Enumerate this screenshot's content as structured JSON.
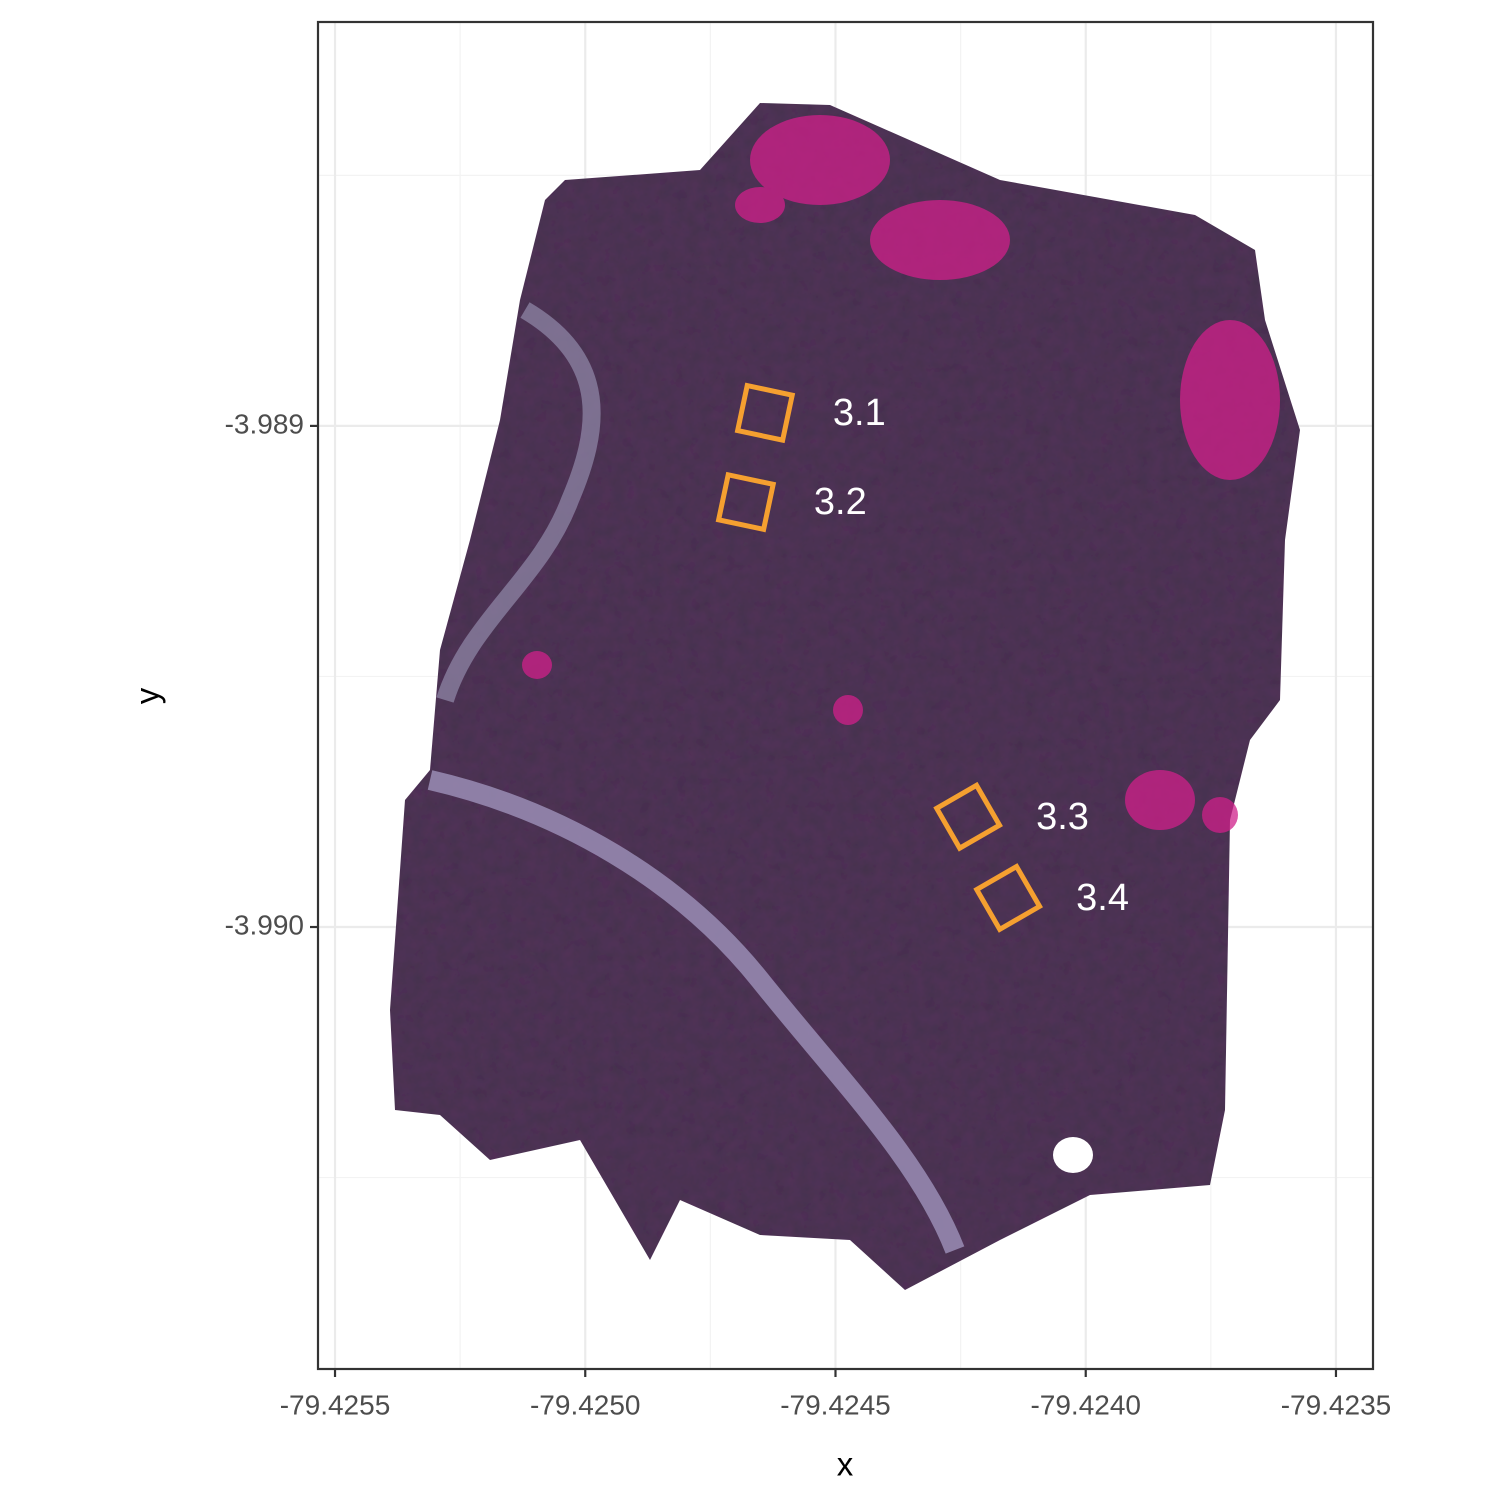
{
  "chart_data": {
    "type": "map",
    "xlabel": "x",
    "ylabel": "y",
    "xlim": [
      -79.425534,
      -79.423426
    ],
    "ylim": [
      -3.990882,
      -3.988194
    ],
    "xticks": [
      -79.4255,
      {
        "value": -79.425,
        "label": "-79.4250"
      },
      -79.4245,
      {
        "value": -79.424,
        "label": "-79.4240"
      },
      -79.4235
    ],
    "yticks": [
      -3.989,
      {
        "value": -3.99,
        "label": "-3.990"
      }
    ],
    "grid": true,
    "color": "#f5a030",
    "plots": [
      {
        "label": "3.1",
        "x": -79.424641,
        "y": -3.988974
      },
      {
        "label": "3.2",
        "x": -79.424679,
        "y": -3.989152
      },
      {
        "label": "3.3",
        "x": -79.424235,
        "y": -3.98978
      },
      {
        "label": "3.4",
        "x": -79.424155,
        "y": -3.989942
      }
    ]
  }
}
